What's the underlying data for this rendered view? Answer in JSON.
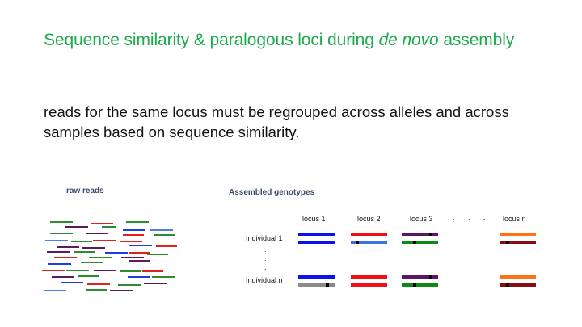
{
  "title": {
    "before": "Sequence similarity & paralogous loci during ",
    "emph": "de novo",
    "after": " assembly"
  },
  "body_text": "reads for the same locus must be regrouped across alleles and across samples based on sequence similarity.",
  "raw_reads": {
    "label": "raw reads",
    "colors": {
      "green": "#2e8b2e",
      "red": "#e0221f",
      "purple": "#5e1a5e",
      "blue": "#1f3fe6",
      "lightblue": "#4a7fe8"
    }
  },
  "genotypes": {
    "label": "Assembled genotypes",
    "loci": [
      "locus 1",
      "locus 2",
      "locus 3",
      "locus n"
    ],
    "dots": [
      ".",
      ".",
      "."
    ],
    "individuals": [
      "Individual 1",
      "Individual n"
    ],
    "vdots": [
      ".",
      ".",
      "."
    ],
    "colors": {
      "blue": "#0a12e8",
      "lightblue": "#3b73e6",
      "red": "#f00f14",
      "purple": "#5c1566",
      "green": "#0c8a14",
      "orange": "#ff7412",
      "darkred": "#8a0c14",
      "gray": "#8a8a8a"
    }
  }
}
